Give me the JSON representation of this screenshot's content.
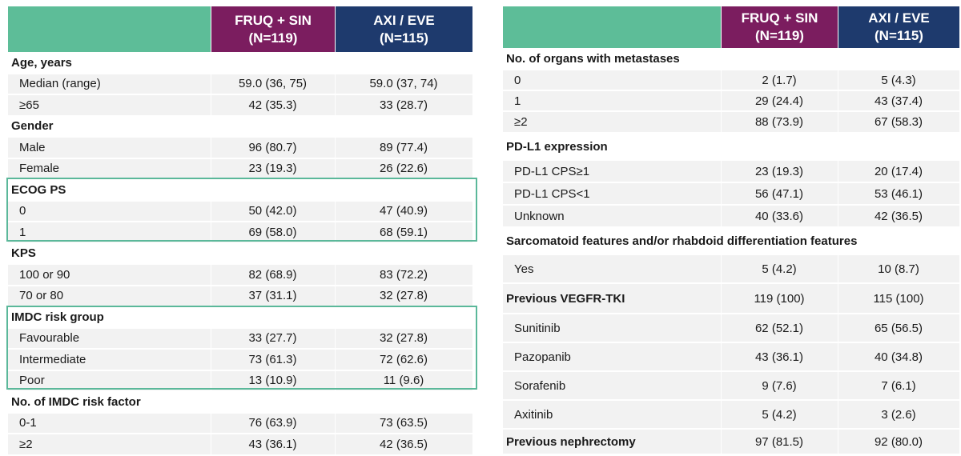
{
  "tables": [
    {
      "headers": [
        {
          "name": "FRUQ + SIN",
          "n": "(N=119)"
        },
        {
          "name": "AXI / EVE",
          "n": "(N=115)"
        }
      ],
      "rows": [
        {
          "label": "Age, years",
          "section": true
        },
        {
          "label": "Median (range)",
          "fruq": "59.0 (36, 75)",
          "axi": "59.0 (37, 74)"
        },
        {
          "label": "≥65",
          "fruq": "42 (35.3)",
          "axi": "33 (28.7)"
        },
        {
          "label": "Gender",
          "section": true
        },
        {
          "label": "Male",
          "fruq": "96 (80.7)",
          "axi": "89 (77.4)"
        },
        {
          "label": "Female",
          "fruq": "23 (19.3)",
          "axi": "26 (22.6)"
        },
        {
          "label": "ECOG PS",
          "section": true
        },
        {
          "label": "0",
          "fruq": "50 (42.0)",
          "axi": "47 (40.9)"
        },
        {
          "label": "1",
          "fruq": "69 (58.0)",
          "axi": "68 (59.1)"
        },
        {
          "label": "KPS",
          "section": true
        },
        {
          "label": "100 or 90",
          "fruq": "82 (68.9)",
          "axi": "83 (72.2)"
        },
        {
          "label": "70 or 80",
          "fruq": "37 (31.1)",
          "axi": "32 (27.8)"
        },
        {
          "label": "IMDC risk group",
          "section": true
        },
        {
          "label": "Favourable",
          "fruq": "33 (27.7)",
          "axi": "32 (27.8)"
        },
        {
          "label": "Intermediate",
          "fruq": "73 (61.3)",
          "axi": "72 (62.6)"
        },
        {
          "label": "Poor",
          "fruq": "13 (10.9)",
          "axi": "11 (9.6)"
        },
        {
          "label": "No. of IMDC risk factor",
          "section": true
        },
        {
          "label": "0-1",
          "fruq": "76 (63.9)",
          "axi": "73 (63.5)"
        },
        {
          "label": "≥2",
          "fruq": "43 (36.1)",
          "axi": "42 (36.5)"
        }
      ]
    },
    {
      "headers": [
        {
          "name": "FRUQ + SIN",
          "n": "(N=119)"
        },
        {
          "name": "AXI / EVE",
          "n": "(N=115)"
        }
      ],
      "rows": [
        {
          "label": "No. of organs with metastases",
          "section": true
        },
        {
          "label": "0",
          "fruq": "2 (1.7)",
          "axi": "5 (4.3)"
        },
        {
          "label": "1",
          "fruq": "29 (24.4)",
          "axi": "43 (37.4)"
        },
        {
          "label": "≥2",
          "fruq": "88 (73.9)",
          "axi": "67 (58.3)"
        },
        {
          "label": "PD-L1 expression",
          "section": true
        },
        {
          "label": "PD-L1 CPS≥1",
          "fruq": "23 (19.3)",
          "axi": "20 (17.4)"
        },
        {
          "label": "PD-L1 CPS<1",
          "fruq": "56 (47.1)",
          "axi": "53 (46.1)"
        },
        {
          "label": "Unknown",
          "fruq": "40 (33.6)",
          "axi": "42 (36.5)"
        },
        {
          "label": "Sarcomatoid features and/or rhabdoid differentiation features",
          "section": true
        },
        {
          "label": "Yes",
          "fruq": "5 (4.2)",
          "axi": "10 (8.7)"
        },
        {
          "label": "Previous VEGFR-TKI",
          "section": true,
          "fruq": "119 (100)",
          "axi": "115 (100)"
        },
        {
          "label": "Sunitinib",
          "fruq": "62 (52.1)",
          "axi": "65 (56.5)"
        },
        {
          "label": "Pazopanib",
          "fruq": "43 (36.1)",
          "axi": "40 (34.8)"
        },
        {
          "label": "Sorafenib",
          "fruq": "9 (7.6)",
          "axi": "7 (6.1)"
        },
        {
          "label": "Axitinib",
          "fruq": "5 (4.2)",
          "axi": "3 (2.6)"
        },
        {
          "label": "Previous nephrectomy",
          "section": true,
          "fruq": "97 (81.5)",
          "axi": "92 (80.0)"
        }
      ]
    }
  ]
}
